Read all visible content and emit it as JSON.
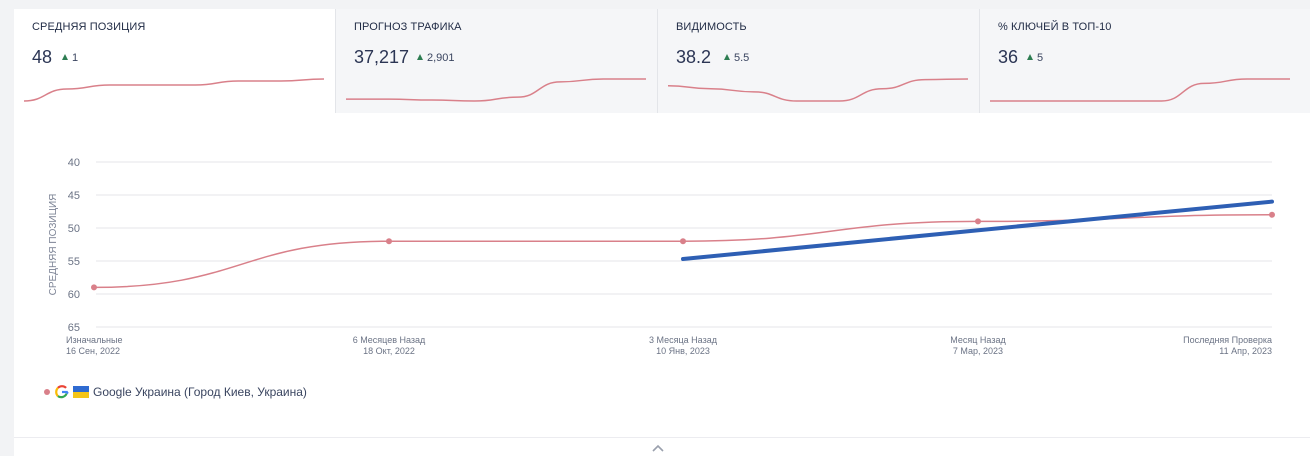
{
  "kpis": [
    {
      "title": "СРЕДНЯЯ ПОЗИЦИЯ",
      "value": "48",
      "delta": "1",
      "trend": [
        60,
        57,
        56,
        56,
        56,
        55,
        55,
        54.5
      ]
    },
    {
      "title": "ПРОГНОЗ ТРАФИКА",
      "value": "37,217",
      "delta": "2,901",
      "trend": [
        10,
        10,
        9,
        8,
        12,
        28,
        31,
        31
      ]
    },
    {
      "title": "ВИДИМОСТЬ",
      "value": "38.2",
      "delta": "5.5",
      "trend": [
        36,
        35,
        34,
        31,
        31,
        35,
        38,
        38.2
      ]
    },
    {
      "title": "% КЛЮЧЕЙ В ТОП-10",
      "value": "36",
      "delta": "5",
      "trend": [
        31,
        31,
        31,
        31,
        31,
        35,
        36,
        36
      ]
    }
  ],
  "chart_data": {
    "type": "line",
    "ylabel": "СРЕДНЯЯ ПОЗИЦИЯ",
    "xlabel": "",
    "ylim": [
      65,
      40
    ],
    "y_inverted": true,
    "yticks": [
      "40",
      "45",
      "50",
      "55",
      "60",
      "65"
    ],
    "x_labels": [
      {
        "line1": "Изначальные",
        "line2": "16 Сен, 2022"
      },
      {
        "line1": "6 Месяцев Назад",
        "line2": "18 Окт, 2022"
      },
      {
        "line1": "3 Месяца Назад",
        "line2": "10 Янв, 2023"
      },
      {
        "line1": "Месяц Назад",
        "line2": "7 Мар, 2023"
      },
      {
        "line1": "Последняя Проверка",
        "line2": "11 Апр, 2023"
      }
    ],
    "series": [
      {
        "name": "Google Украина (Город Киев, Украина)",
        "color": "#d9808a",
        "values": [
          59,
          52,
          52,
          49,
          48
        ]
      }
    ],
    "trendline": {
      "color": "#2e5fb4",
      "from_index": 2,
      "from_value": 54.7,
      "to_index": 4,
      "to_value": 46
    }
  },
  "legend": {
    "label": "Google Украина (Город Киев, Украина)"
  },
  "colors": {
    "accent": "#2e5fb4",
    "series": "#d9808a",
    "up": "#2e7d52"
  }
}
